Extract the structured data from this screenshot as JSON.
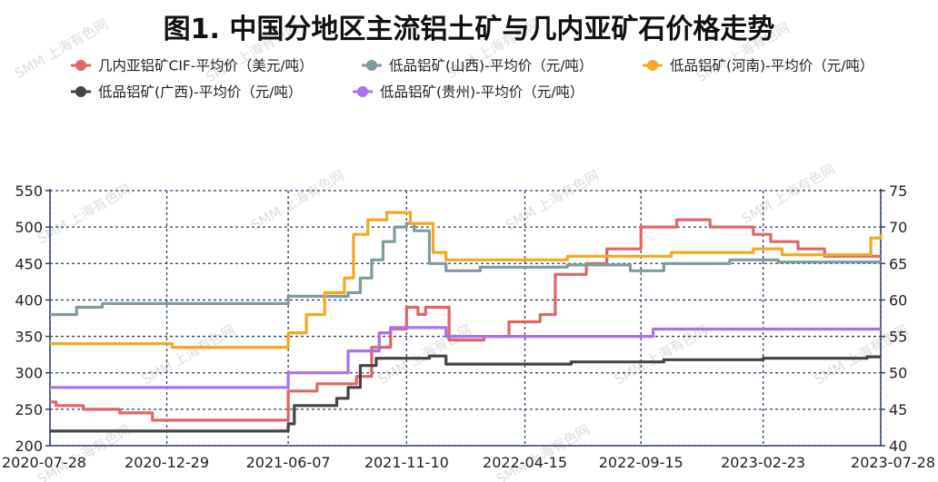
{
  "chart_data": {
    "type": "line",
    "title": "图1. 中国分地区主流铝土矿与几内亚矿石价格走势",
    "watermark": "SMM 上海有色网",
    "x_range": [
      "2020-07-28",
      "2023-07-28"
    ],
    "x_ticks": [
      "2020-07-28",
      "2020-12-29",
      "2021-06-07",
      "2021-11-10",
      "2022-04-15",
      "2022-09-15",
      "2023-02-23",
      "2023-07-28"
    ],
    "y_left": {
      "min": 200,
      "max": 550,
      "ticks": [
        200,
        250,
        300,
        350,
        400,
        450,
        500,
        550
      ]
    },
    "y_right": {
      "min": 40,
      "max": 75,
      "ticks": [
        40,
        45,
        50,
        55,
        60,
        65,
        70,
        75
      ]
    },
    "grid": true,
    "legend_position": "top",
    "series": [
      {
        "name": "几内亚铝矿CIF-平均价（美元/吨）",
        "axis": "right",
        "color": "#e06666",
        "points": [
          [
            "2020-07-28",
            46
          ],
          [
            "2020-08-05",
            45.5
          ],
          [
            "2020-09-10",
            45
          ],
          [
            "2020-10-28",
            44.5
          ],
          [
            "2020-12-10",
            43.5
          ],
          [
            "2021-06-04",
            43.5
          ],
          [
            "2021-06-07",
            47.5
          ],
          [
            "2021-07-15",
            48.5
          ],
          [
            "2021-09-05",
            49.5
          ],
          [
            "2021-09-25",
            53.5
          ],
          [
            "2021-10-20",
            56
          ],
          [
            "2021-11-10",
            59
          ],
          [
            "2021-11-25",
            58
          ],
          [
            "2021-12-05",
            59
          ],
          [
            "2022-01-05",
            54.5
          ],
          [
            "2022-02-20",
            55
          ],
          [
            "2022-03-25",
            57
          ],
          [
            "2022-05-05",
            58
          ],
          [
            "2022-05-25",
            63.5
          ],
          [
            "2022-07-05",
            65
          ],
          [
            "2022-08-01",
            67
          ],
          [
            "2022-09-15",
            70
          ],
          [
            "2022-11-01",
            71
          ],
          [
            "2022-12-15",
            70
          ],
          [
            "2023-02-10",
            69
          ],
          [
            "2023-03-05",
            68
          ],
          [
            "2023-04-10",
            67
          ],
          [
            "2023-05-15",
            66
          ],
          [
            "2023-07-20",
            66
          ],
          [
            "2023-07-28",
            66
          ]
        ]
      },
      {
        "name": "低品铝矿(山西)-平均价（元/吨）",
        "axis": "left",
        "color": "#7f9b9e",
        "points": [
          [
            "2020-07-28",
            380
          ],
          [
            "2020-09-01",
            390
          ],
          [
            "2020-10-05",
            395
          ],
          [
            "2021-05-20",
            395
          ],
          [
            "2021-06-07",
            405
          ],
          [
            "2021-08-25",
            410
          ],
          [
            "2021-09-10",
            430
          ],
          [
            "2021-09-25",
            455
          ],
          [
            "2021-10-10",
            480
          ],
          [
            "2021-10-25",
            500
          ],
          [
            "2021-11-10",
            505
          ],
          [
            "2021-11-20",
            495
          ],
          [
            "2021-12-10",
            450
          ],
          [
            "2022-01-01",
            440
          ],
          [
            "2022-02-15",
            445
          ],
          [
            "2022-06-10",
            448
          ],
          [
            "2022-09-01",
            440
          ],
          [
            "2022-10-15",
            450
          ],
          [
            "2023-01-10",
            455
          ],
          [
            "2023-03-15",
            452
          ],
          [
            "2023-07-28",
            452
          ]
        ]
      },
      {
        "name": "低品铝矿(河南)-平均价（元/吨）",
        "axis": "left",
        "color": "#f3a81f",
        "points": [
          [
            "2020-07-28",
            340
          ],
          [
            "2020-11-20",
            340
          ],
          [
            "2021-01-05",
            335
          ],
          [
            "2021-06-01",
            335
          ],
          [
            "2021-06-07",
            355
          ],
          [
            "2021-07-01",
            380
          ],
          [
            "2021-07-25",
            410
          ],
          [
            "2021-08-20",
            430
          ],
          [
            "2021-09-01",
            490
          ],
          [
            "2021-09-20",
            510
          ],
          [
            "2021-10-15",
            520
          ],
          [
            "2021-11-15",
            505
          ],
          [
            "2021-12-15",
            465
          ],
          [
            "2022-01-01",
            455
          ],
          [
            "2022-05-20",
            455
          ],
          [
            "2022-06-10",
            460
          ],
          [
            "2022-10-10",
            460
          ],
          [
            "2022-10-25",
            465
          ],
          [
            "2023-02-10",
            470
          ],
          [
            "2023-03-20",
            462
          ],
          [
            "2023-07-01",
            462
          ],
          [
            "2023-07-15",
            485
          ],
          [
            "2023-07-28",
            490
          ]
        ]
      },
      {
        "name": "低品铝矿(广西)-平均价（元/吨）",
        "axis": "left",
        "color": "#444444",
        "points": [
          [
            "2020-07-28",
            220
          ],
          [
            "2021-06-04",
            220
          ],
          [
            "2021-06-07",
            230
          ],
          [
            "2021-06-15",
            255
          ],
          [
            "2021-08-10",
            265
          ],
          [
            "2021-08-25",
            280
          ],
          [
            "2021-09-10",
            310
          ],
          [
            "2021-10-01",
            320
          ],
          [
            "2021-12-10",
            323
          ],
          [
            "2022-01-01",
            312
          ],
          [
            "2022-06-15",
            315
          ],
          [
            "2022-10-15",
            318
          ],
          [
            "2023-02-23",
            320
          ],
          [
            "2023-07-10",
            322
          ],
          [
            "2023-07-28",
            322
          ]
        ]
      },
      {
        "name": "低品铝矿(贵州)-平均价（元/吨）",
        "axis": "left",
        "color": "#a970f0",
        "points": [
          [
            "2020-07-28",
            280
          ],
          [
            "2021-06-04",
            280
          ],
          [
            "2021-06-07",
            300
          ],
          [
            "2021-08-25",
            330
          ],
          [
            "2021-10-05",
            355
          ],
          [
            "2021-10-20",
            362
          ],
          [
            "2021-12-25",
            362
          ],
          [
            "2022-01-01",
            350
          ],
          [
            "2022-09-10",
            350
          ],
          [
            "2022-10-01",
            360
          ],
          [
            "2023-07-28",
            360
          ]
        ]
      }
    ]
  }
}
